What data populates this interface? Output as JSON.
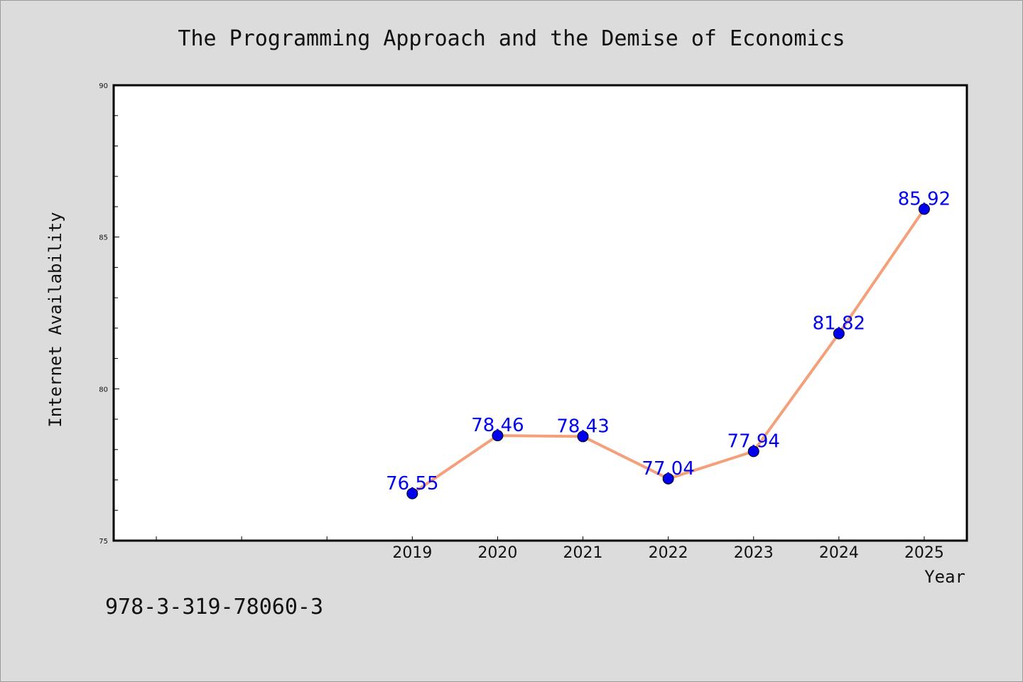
{
  "chart_data": {
    "type": "line",
    "title": "The Programming Approach and the Demise of Economics",
    "xlabel": "Year",
    "ylabel": "Internet Availability",
    "x": [
      "2019",
      "2020",
      "2021",
      "2022",
      "2023",
      "2024",
      "2025"
    ],
    "series": [
      {
        "values": [
          76.55,
          78.46,
          78.43,
          77.04,
          77.94,
          81.82,
          85.92
        ]
      }
    ],
    "x_extent": [
      2015.5,
      2025.5
    ],
    "ylim": [
      75,
      90
    ],
    "y_ticks": [
      "75",
      "80",
      "85",
      "90"
    ],
    "grid": false,
    "legend": "none",
    "line_color": "#f4a07a",
    "marker_color": "#0000ee",
    "label_color": "#0000ee"
  },
  "footer": {
    "isbn": "978-3-319-78060-3"
  }
}
